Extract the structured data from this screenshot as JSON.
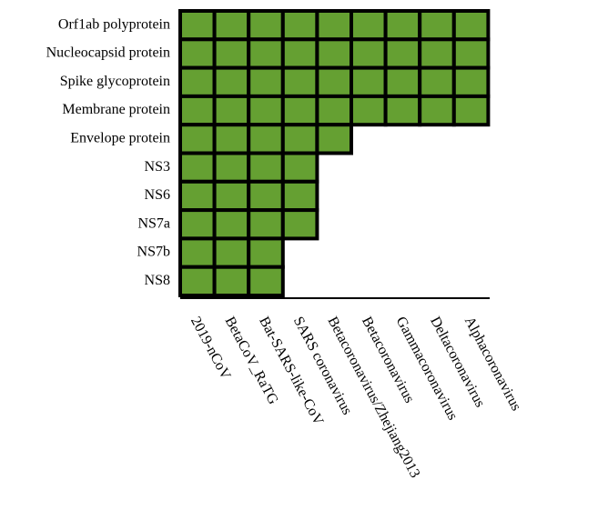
{
  "rows": [
    {
      "label": "Orf1ab polyprotein",
      "count": 9
    },
    {
      "label": "Nucleocapsid protein",
      "count": 9
    },
    {
      "label": "Spike glycoprotein",
      "count": 9
    },
    {
      "label": "Membrane protein",
      "count": 9
    },
    {
      "label": "Envelope protein",
      "count": 5
    },
    {
      "label": "NS3",
      "count": 4
    },
    {
      "label": "NS6",
      "count": 4
    },
    {
      "label": "NS7a",
      "count": 4
    },
    {
      "label": "NS7b",
      "count": 3
    },
    {
      "label": "NS8",
      "count": 3
    }
  ],
  "columns": [
    "2019-nCoV",
    "BetaCoV_RaTG",
    "Bat-SARS-like-CoV",
    "SARS coronavirus",
    "Betacoronavirus/Zhejiang2013",
    "Betacoronavirus",
    "Gammacoronavirus",
    "Deltacoronavirus",
    "Alphacoronavirus"
  ],
  "cell_color": "#65a032"
}
